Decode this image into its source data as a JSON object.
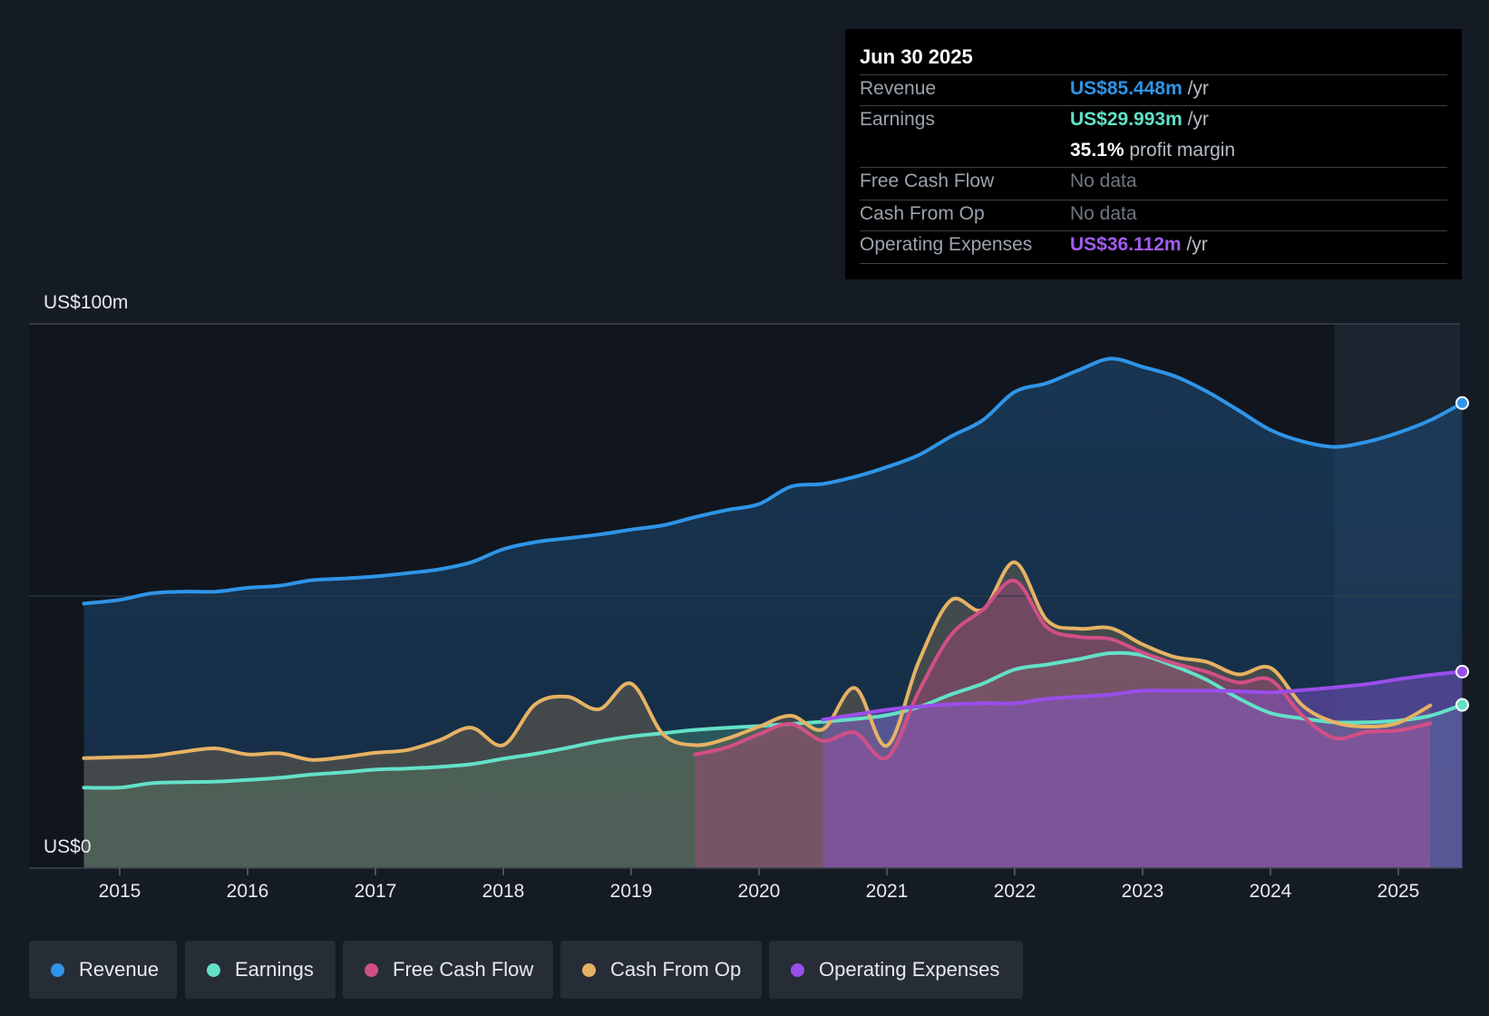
{
  "chart_data": {
    "type": "line",
    "y_axis": {
      "top_label": "US$100m",
      "bottom_label": "US$0",
      "ylim": [
        0,
        100
      ],
      "mid_gridline": 50
    },
    "x_ticks": [
      "2015",
      "2016",
      "2017",
      "2018",
      "2019",
      "2020",
      "2021",
      "2022",
      "2023",
      "2024",
      "2025"
    ],
    "xlim": [
      2014.5,
      2025.5
    ],
    "series": [
      {
        "name": "Revenue",
        "color": "#2f95e8",
        "points": [
          [
            2014.72,
            48.6
          ],
          [
            2015.0,
            49.3
          ],
          [
            2015.25,
            50.5
          ],
          [
            2015.5,
            50.8
          ],
          [
            2015.75,
            50.8
          ],
          [
            2016.0,
            51.5
          ],
          [
            2016.25,
            51.9
          ],
          [
            2016.5,
            52.9
          ],
          [
            2016.75,
            53.2
          ],
          [
            2017.0,
            53.6
          ],
          [
            2017.25,
            54.2
          ],
          [
            2017.5,
            54.9
          ],
          [
            2017.75,
            56.2
          ],
          [
            2018.0,
            58.6
          ],
          [
            2018.25,
            59.9
          ],
          [
            2018.5,
            60.6
          ],
          [
            2018.75,
            61.3
          ],
          [
            2019.0,
            62.2
          ],
          [
            2019.25,
            63.0
          ],
          [
            2019.5,
            64.5
          ],
          [
            2019.75,
            65.8
          ],
          [
            2020.0,
            66.9
          ],
          [
            2020.25,
            70.1
          ],
          [
            2020.5,
            70.6
          ],
          [
            2020.75,
            71.9
          ],
          [
            2021.0,
            73.7
          ],
          [
            2021.25,
            75.9
          ],
          [
            2021.5,
            79.3
          ],
          [
            2021.75,
            82.3
          ],
          [
            2022.0,
            87.5
          ],
          [
            2022.25,
            89.1
          ],
          [
            2022.5,
            91.5
          ],
          [
            2022.75,
            93.6
          ],
          [
            2023.0,
            92.1
          ],
          [
            2023.25,
            90.4
          ],
          [
            2023.5,
            87.6
          ],
          [
            2023.75,
            84.1
          ],
          [
            2024.0,
            80.5
          ],
          [
            2024.25,
            78.4
          ],
          [
            2024.5,
            77.4
          ],
          [
            2024.75,
            78.3
          ],
          [
            2025.0,
            80.0
          ],
          [
            2025.25,
            82.3
          ],
          [
            2025.5,
            85.448
          ]
        ]
      },
      {
        "name": "Earnings",
        "color": "#63e1c8",
        "points": [
          [
            2014.72,
            14.8
          ],
          [
            2015.0,
            14.8
          ],
          [
            2015.25,
            15.6
          ],
          [
            2015.5,
            15.8
          ],
          [
            2015.75,
            15.9
          ],
          [
            2016.0,
            16.2
          ],
          [
            2016.25,
            16.6
          ],
          [
            2016.5,
            17.2
          ],
          [
            2016.75,
            17.6
          ],
          [
            2017.0,
            18.1
          ],
          [
            2017.25,
            18.3
          ],
          [
            2017.5,
            18.6
          ],
          [
            2017.75,
            19.1
          ],
          [
            2018.0,
            20.1
          ],
          [
            2018.25,
            21.0
          ],
          [
            2018.5,
            22.1
          ],
          [
            2018.75,
            23.3
          ],
          [
            2019.0,
            24.2
          ],
          [
            2019.25,
            24.8
          ],
          [
            2019.5,
            25.4
          ],
          [
            2019.75,
            25.8
          ],
          [
            2020.0,
            26.1
          ],
          [
            2020.25,
            26.5
          ],
          [
            2020.5,
            26.9
          ],
          [
            2020.75,
            27.4
          ],
          [
            2021.0,
            28.1
          ],
          [
            2021.25,
            29.6
          ],
          [
            2021.5,
            31.9
          ],
          [
            2021.75,
            33.9
          ],
          [
            2022.0,
            36.5
          ],
          [
            2022.25,
            37.4
          ],
          [
            2022.5,
            38.4
          ],
          [
            2022.75,
            39.5
          ],
          [
            2023.0,
            39.1
          ],
          [
            2023.25,
            37.1
          ],
          [
            2023.5,
            34.6
          ],
          [
            2023.75,
            31.2
          ],
          [
            2024.0,
            28.5
          ],
          [
            2024.25,
            27.5
          ],
          [
            2024.5,
            26.8
          ],
          [
            2024.75,
            26.8
          ],
          [
            2025.0,
            27.1
          ],
          [
            2025.25,
            28.0
          ],
          [
            2025.5,
            29.993
          ]
        ]
      },
      {
        "name": "Free Cash Flow",
        "color": "#d24f86",
        "points": [
          [
            2019.5,
            20.9
          ],
          [
            2019.75,
            22.2
          ],
          [
            2020.0,
            24.6
          ],
          [
            2020.25,
            26.5
          ],
          [
            2020.5,
            23.4
          ],
          [
            2020.75,
            24.9
          ],
          [
            2021.0,
            20.3
          ],
          [
            2021.25,
            32.5
          ],
          [
            2021.5,
            42.8
          ],
          [
            2021.75,
            47.5
          ],
          [
            2022.0,
            52.8
          ],
          [
            2022.25,
            44.3
          ],
          [
            2022.5,
            42.5
          ],
          [
            2022.75,
            42.1
          ],
          [
            2023.0,
            39.6
          ],
          [
            2023.25,
            37.6
          ],
          [
            2023.5,
            36.1
          ],
          [
            2023.75,
            34.1
          ],
          [
            2024.0,
            34.6
          ],
          [
            2024.25,
            28.0
          ],
          [
            2024.5,
            23.9
          ],
          [
            2024.75,
            25.0
          ],
          [
            2025.0,
            25.3
          ],
          [
            2025.25,
            26.6
          ]
        ]
      },
      {
        "name": "Cash From Op",
        "color": "#e6b264",
        "points": [
          [
            2014.72,
            20.2
          ],
          [
            2015.0,
            20.4
          ],
          [
            2015.25,
            20.6
          ],
          [
            2015.5,
            21.4
          ],
          [
            2015.75,
            22.0
          ],
          [
            2016.0,
            20.9
          ],
          [
            2016.25,
            21.1
          ],
          [
            2016.5,
            19.9
          ],
          [
            2016.75,
            20.4
          ],
          [
            2017.0,
            21.2
          ],
          [
            2017.25,
            21.7
          ],
          [
            2017.5,
            23.5
          ],
          [
            2017.75,
            25.8
          ],
          [
            2018.0,
            22.6
          ],
          [
            2018.25,
            30.1
          ],
          [
            2018.5,
            31.5
          ],
          [
            2018.75,
            29.2
          ],
          [
            2019.0,
            33.9
          ],
          [
            2019.25,
            24.6
          ],
          [
            2019.5,
            22.6
          ],
          [
            2019.75,
            23.8
          ],
          [
            2020.0,
            26.0
          ],
          [
            2020.25,
            28.0
          ],
          [
            2020.5,
            25.5
          ],
          [
            2020.75,
            33.1
          ],
          [
            2021.0,
            22.5
          ],
          [
            2021.25,
            38.0
          ],
          [
            2021.5,
            49.2
          ],
          [
            2021.75,
            47.5
          ],
          [
            2022.0,
            56.2
          ],
          [
            2022.25,
            45.6
          ],
          [
            2022.5,
            44.0
          ],
          [
            2022.75,
            44.1
          ],
          [
            2023.0,
            41.1
          ],
          [
            2023.25,
            38.8
          ],
          [
            2023.5,
            37.9
          ],
          [
            2023.75,
            35.6
          ],
          [
            2024.0,
            36.8
          ],
          [
            2024.25,
            29.9
          ],
          [
            2024.5,
            26.8
          ],
          [
            2024.75,
            26.0
          ],
          [
            2025.0,
            26.7
          ],
          [
            2025.25,
            29.9
          ]
        ]
      },
      {
        "name": "Operating Expenses",
        "color": "#9a4eea",
        "points": [
          [
            2020.5,
            27.3
          ],
          [
            2020.75,
            28.2
          ],
          [
            2021.0,
            29.1
          ],
          [
            2021.25,
            29.7
          ],
          [
            2021.5,
            30.1
          ],
          [
            2021.75,
            30.3
          ],
          [
            2022.0,
            30.3
          ],
          [
            2022.25,
            31.1
          ],
          [
            2022.5,
            31.5
          ],
          [
            2022.75,
            31.9
          ],
          [
            2023.0,
            32.6
          ],
          [
            2023.25,
            32.6
          ],
          [
            2023.5,
            32.6
          ],
          [
            2023.75,
            32.5
          ],
          [
            2024.0,
            32.3
          ],
          [
            2024.25,
            32.7
          ],
          [
            2024.5,
            33.2
          ],
          [
            2024.75,
            33.8
          ],
          [
            2025.0,
            34.7
          ],
          [
            2025.25,
            35.5
          ],
          [
            2025.5,
            36.112
          ]
        ]
      }
    ]
  },
  "tooltip": {
    "date": "Jun 30 2025",
    "rows": {
      "revenue": {
        "label": "Revenue",
        "value": "US$85.448m",
        "unit": " /yr"
      },
      "earnings": {
        "label": "Earnings",
        "value": "US$29.993m",
        "unit": " /yr"
      },
      "margin": {
        "value": "35.1%",
        "unit": " profit margin"
      },
      "fcf": {
        "label": "Free Cash Flow",
        "value": "No data"
      },
      "cfo": {
        "label": "Cash From Op",
        "value": "No data"
      },
      "opex": {
        "label": "Operating Expenses",
        "value": "US$36.112m",
        "unit": " /yr"
      }
    }
  },
  "legend": [
    "Revenue",
    "Earnings",
    "Free Cash Flow",
    "Cash From Op",
    "Operating Expenses"
  ],
  "colors": {
    "background": "#151b24",
    "revenue": "#2f95e8",
    "earnings": "#63e1c8",
    "fcf": "#d24f86",
    "cfo": "#e6b264",
    "opex": "#9a4eea"
  }
}
